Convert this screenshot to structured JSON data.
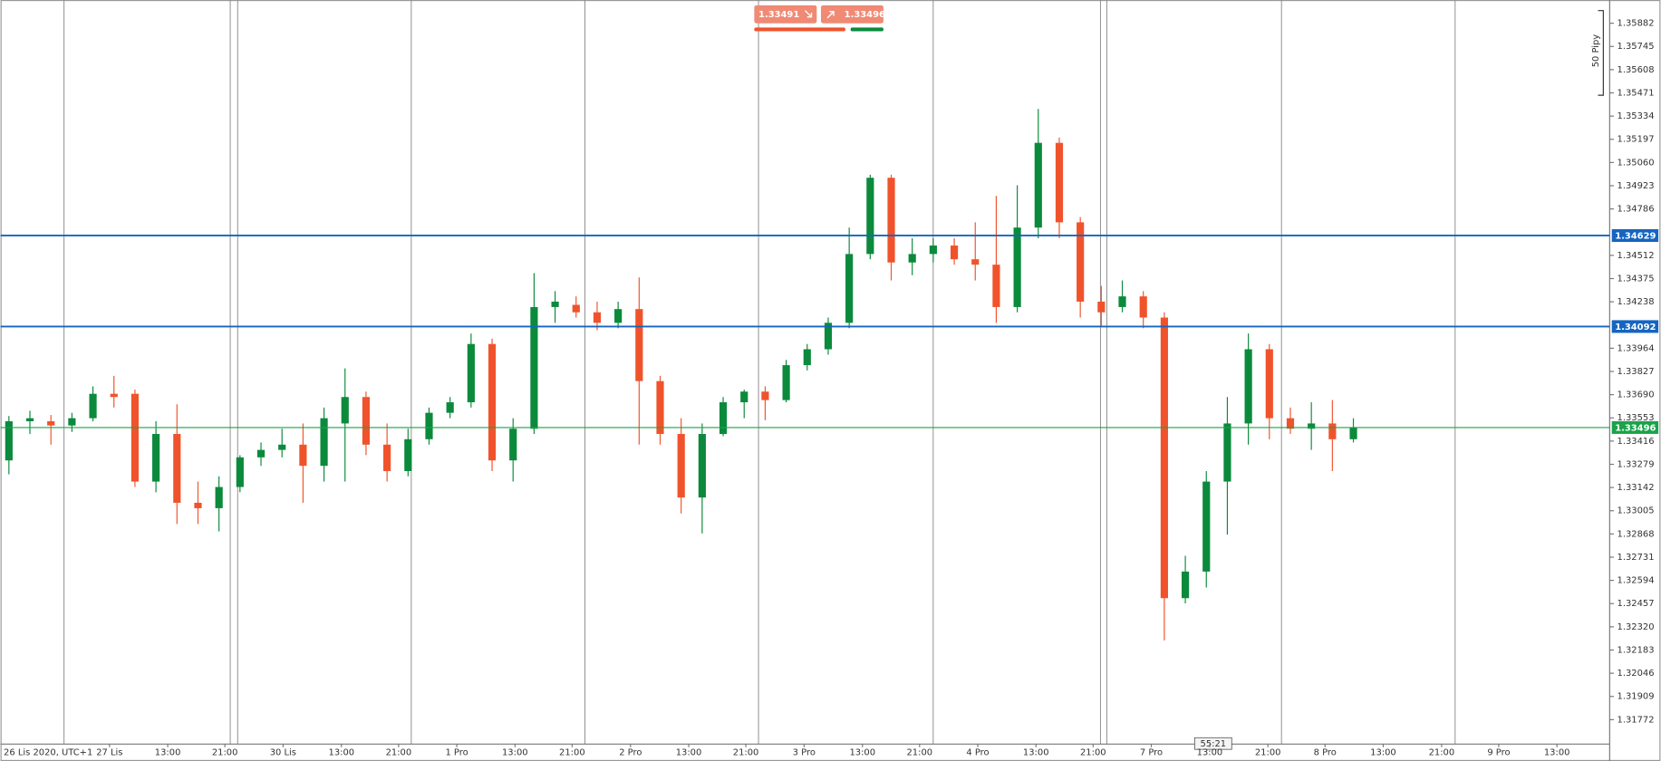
{
  "chart_data": {
    "type": "candlestick",
    "up_color": "#0b8a3c",
    "down_color": "#f0532b",
    "open": [
      1.33302,
      1.33533,
      1.33533,
      1.33508,
      1.33551,
      1.33695,
      1.33695,
      1.33177,
      1.33458,
      1.33052,
      1.3302,
      1.33145,
      1.3332,
      1.33364,
      1.33395,
      1.3327,
      1.3352,
      1.33676,
      1.33395,
      1.33239,
      1.33427,
      1.33583,
      1.33645,
      1.33989,
      1.33302,
      1.33489,
      1.34207,
      1.3422,
      1.34176,
      1.34114,
      1.34195,
      1.3377,
      1.33458,
      1.33083,
      1.33458,
      1.33645,
      1.33708,
      1.33658,
      1.33864,
      1.33958,
      1.34114,
      1.3452,
      1.3497,
      1.3447,
      1.3452,
      1.3457,
      1.34489,
      1.34457,
      1.34207,
      1.34676,
      1.35176,
      1.34707,
      1.34239,
      1.34207,
      1.3427,
      1.34145,
      1.32489,
      1.32646,
      1.33177,
      1.3352,
      1.33958,
      1.33551,
      1.33489,
      1.3352,
      1.33427
    ],
    "high": [
      1.33564,
      1.33595,
      1.3357,
      1.33583,
      1.33739,
      1.33801,
      1.3372,
      1.33533,
      1.33633,
      1.33177,
      1.33208,
      1.33333,
      1.33408,
      1.33489,
      1.3352,
      1.33614,
      1.33845,
      1.33708,
      1.3352,
      1.33489,
      1.33614,
      1.33676,
      1.34051,
      1.3402,
      1.33551,
      1.34407,
      1.34301,
      1.3427,
      1.34239,
      1.34239,
      1.34382,
      1.33801,
      1.33551,
      1.3352,
      1.33676,
      1.3372,
      1.33739,
      1.33895,
      1.33989,
      1.34145,
      1.34676,
      1.34988,
      1.34988,
      1.34613,
      1.34613,
      1.34613,
      1.34707,
      1.34863,
      1.34926,
      1.35376,
      1.35207,
      1.34738,
      1.34332,
      1.34364,
      1.34301,
      1.34176,
      1.32739,
      1.33239,
      1.33676,
      1.34051,
      1.33989,
      1.33614,
      1.33645,
      1.33658,
      1.33551
    ],
    "low": [
      1.3322,
      1.33458,
      1.33395,
      1.3347,
      1.33533,
      1.33614,
      1.33145,
      1.33114,
      1.32927,
      1.32927,
      1.32883,
      1.33114,
      1.3327,
      1.3332,
      1.33052,
      1.33177,
      1.33177,
      1.33333,
      1.33177,
      1.33208,
      1.33395,
      1.33551,
      1.33614,
      1.33239,
      1.33177,
      1.33458,
      1.34114,
      1.34145,
      1.3407,
      1.34082,
      1.33395,
      1.33395,
      1.32989,
      1.32871,
      1.33445,
      1.33551,
      1.33539,
      1.33645,
      1.33833,
      1.33926,
      1.34082,
      1.34489,
      1.34364,
      1.34395,
      1.3447,
      1.34457,
      1.34364,
      1.34114,
      1.34176,
      1.34613,
      1.34613,
      1.34145,
      1.34095,
      1.34176,
      1.34082,
      1.3224,
      1.32458,
      1.32552,
      1.32864,
      1.33395,
      1.33427,
      1.33458,
      1.33364,
      1.33239,
      1.33408
    ],
    "close": [
      1.33533,
      1.33551,
      1.33508,
      1.33551,
      1.33695,
      1.33676,
      1.33177,
      1.33458,
      1.33052,
      1.3302,
      1.33145,
      1.3332,
      1.33364,
      1.33395,
      1.3327,
      1.33551,
      1.33676,
      1.33395,
      1.33239,
      1.33427,
      1.33583,
      1.33645,
      1.33989,
      1.33302,
      1.33489,
      1.34207,
      1.34239,
      1.34176,
      1.34114,
      1.34195,
      1.3377,
      1.33458,
      1.33083,
      1.33458,
      1.33645,
      1.33708,
      1.33658,
      1.33864,
      1.33958,
      1.34114,
      1.3452,
      1.3497,
      1.3447,
      1.3452,
      1.3457,
      1.34489,
      1.34457,
      1.34207,
      1.34676,
      1.35176,
      1.34707,
      1.34239,
      1.34176,
      1.3427,
      1.34145,
      1.32489,
      1.32646,
      1.33177,
      1.3352,
      1.33958,
      1.33551,
      1.33489,
      1.3352,
      1.33427,
      1.33496
    ],
    "ylim": [
      1.31628,
      1.36019
    ],
    "yticks": [
      1.35882,
      1.35745,
      1.35608,
      1.35471,
      1.35334,
      1.35197,
      {
        "value": 1.3506,
        "label": "1.35060"
      },
      1.34923,
      1.34786,
      1.34512,
      1.34375,
      1.34238,
      1.33964,
      1.33827,
      {
        "value": 1.3369,
        "label": "1.33690"
      },
      1.33553,
      1.33416,
      1.33279,
      1.33142,
      1.33005,
      1.32868,
      1.32731,
      1.32594,
      1.32457,
      {
        "value": 1.3232,
        "label": "1.32320"
      },
      1.32183,
      1.32046,
      1.31909,
      1.31772
    ],
    "xlim": [
      -0.4,
      76.2
    ],
    "x_start_label": "26 Lis 2020, UTC+1",
    "xticks": [
      {
        "value": 4.79,
        "label": "27 Lis"
      },
      {
        "value": 7.56,
        "label": "13:00"
      },
      {
        "value": 10.28,
        "label": "21:00"
      },
      {
        "value": 13.05,
        "label": "30 Lis"
      },
      {
        "value": 15.83,
        "label": "13:00"
      },
      {
        "value": 18.55,
        "label": "21:00"
      },
      {
        "value": 21.32,
        "label": "1 Pro"
      },
      {
        "value": 24.09,
        "label": "13:00"
      },
      {
        "value": 26.81,
        "label": "21:00"
      },
      {
        "value": 29.59,
        "label": "2 Pro"
      },
      {
        "value": 32.36,
        "label": "13:00"
      },
      {
        "value": 35.08,
        "label": "21:00"
      },
      {
        "value": 37.85,
        "label": "3 Pro"
      },
      {
        "value": 40.63,
        "label": "13:00"
      },
      {
        "value": 43.35,
        "label": "21:00"
      },
      {
        "value": 46.12,
        "label": "4 Pro"
      },
      {
        "value": 48.89,
        "label": "13:00"
      },
      {
        "value": 51.61,
        "label": "21:00"
      },
      {
        "value": 54.38,
        "label": "7 Pro"
      },
      {
        "value": 57.16,
        "label": "13:00"
      },
      {
        "value": 59.93,
        "label": "21:00"
      },
      {
        "value": 62.65,
        "label": "8 Pro"
      },
      {
        "value": 65.42,
        "label": "13:00"
      },
      {
        "value": 68.2,
        "label": "21:00"
      },
      {
        "value": 70.92,
        "label": "9 Pro"
      },
      {
        "value": 73.69,
        "label": "13:00"
      }
    ],
    "levels": [
      {
        "value": 1.34629,
        "color": "#1565c0"
      },
      {
        "value": 1.34092,
        "color": "#1565c0"
      },
      {
        "value": 1.33496,
        "color": "#1aa34a"
      }
    ],
    "quote": {
      "sell": 1.33491,
      "buy": 1.33496
    },
    "countdown": "55:21",
    "range_label": "50 Pipy"
  }
}
